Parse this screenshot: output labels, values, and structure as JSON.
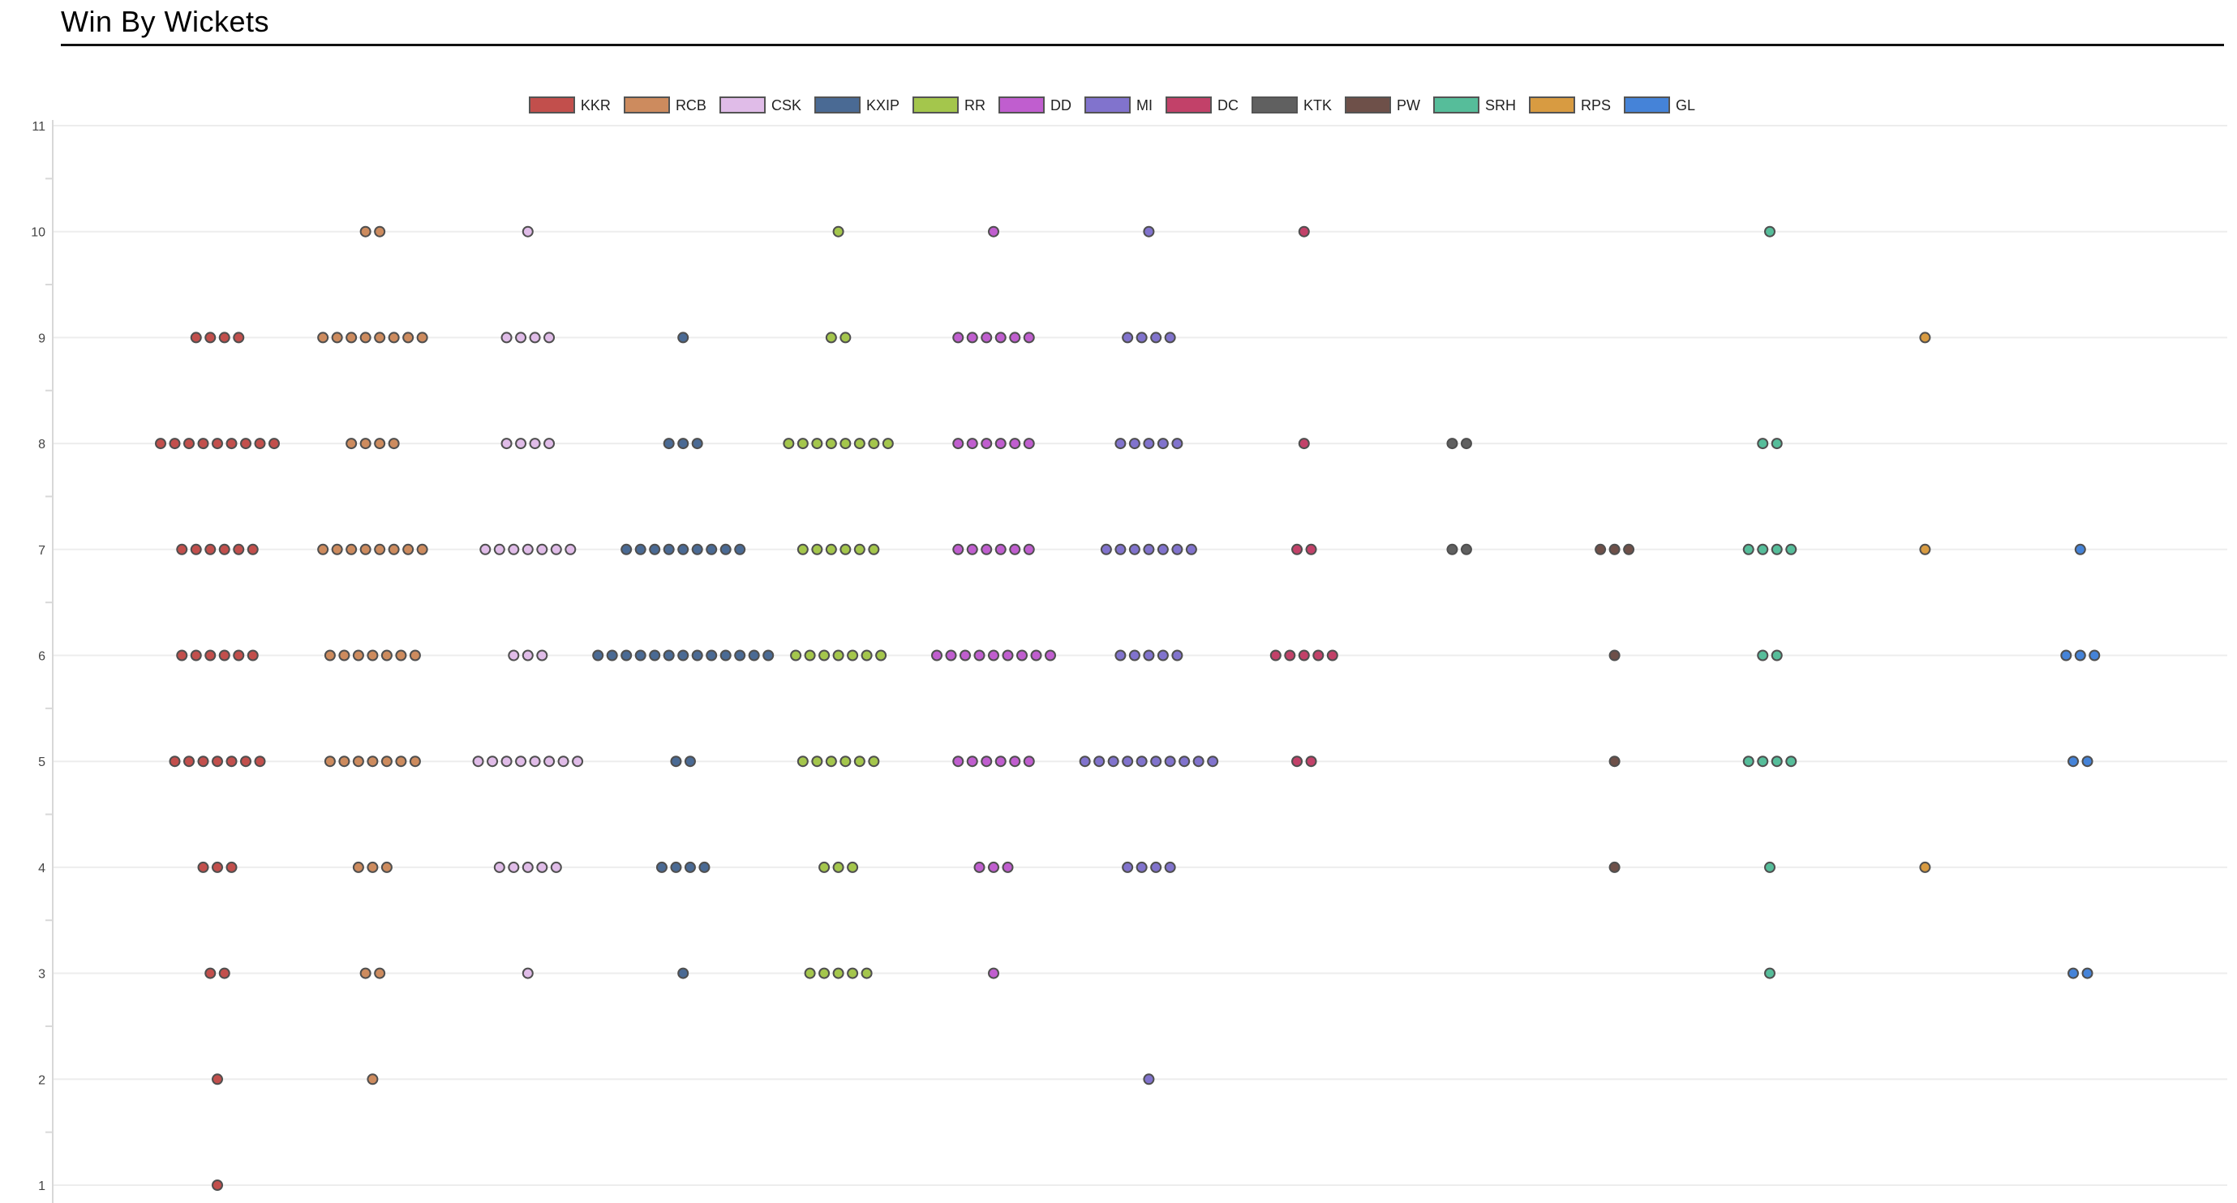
{
  "page": {
    "title": "Win By Wickets"
  },
  "chart_data": {
    "type": "scatter",
    "variant": "strip-plot-dot-counts",
    "title": "Win By Wickets",
    "xlabel": "",
    "ylabel": "",
    "ylim": [
      1,
      11
    ],
    "y_ticks": [
      11,
      10,
      9,
      8,
      7,
      6,
      5,
      4,
      3,
      2,
      1
    ],
    "grid": "horizontal",
    "legend_position": "top-center",
    "gridline_color": "#ededed",
    "axis_line_color": "#d8d8d8",
    "point_outline_color": "#4f4f4f",
    "series": [
      {
        "name": "KKR",
        "color": "#c24f4c",
        "wins_by_wickets": {
          "1": 1,
          "2": 1,
          "3": 2,
          "4": 3,
          "5": 7,
          "6": 6,
          "7": 6,
          "8": 9,
          "9": 4
        }
      },
      {
        "name": "RCB",
        "color": "#cd8b5e",
        "wins_by_wickets": {
          "2": 1,
          "3": 2,
          "4": 3,
          "5": 7,
          "6": 7,
          "7": 8,
          "8": 4,
          "9": 8,
          "10": 2
        }
      },
      {
        "name": "CSK",
        "color": "#e0bce8",
        "wins_by_wickets": {
          "3": 1,
          "4": 5,
          "5": 8,
          "6": 3,
          "7": 7,
          "8": 4,
          "9": 4,
          "10": 1
        }
      },
      {
        "name": "KXIP",
        "color": "#4a6a94",
        "wins_by_wickets": {
          "3": 1,
          "4": 4,
          "5": 2,
          "6": 13,
          "7": 9,
          "8": 3,
          "9": 1
        }
      },
      {
        "name": "RR",
        "color": "#a4c64c",
        "wins_by_wickets": {
          "3": 5,
          "4": 3,
          "5": 6,
          "6": 7,
          "7": 6,
          "8": 8,
          "9": 2,
          "10": 1
        }
      },
      {
        "name": "DD",
        "color": "#c05ecf",
        "wins_by_wickets": {
          "3": 1,
          "4": 3,
          "5": 6,
          "6": 9,
          "7": 6,
          "8": 6,
          "9": 6,
          "10": 1
        }
      },
      {
        "name": "MI",
        "color": "#8173cd",
        "wins_by_wickets": {
          "2": 1,
          "4": 4,
          "5": 10,
          "6": 5,
          "7": 7,
          "8": 5,
          "9": 4,
          "10": 1
        }
      },
      {
        "name": "DC",
        "color": "#c24169",
        "wins_by_wickets": {
          "5": 2,
          "6": 5,
          "7": 2,
          "8": 1,
          "10": 1
        }
      },
      {
        "name": "KTK",
        "color": "#606060",
        "wins_by_wickets": {
          "7": 2,
          "8": 2
        }
      },
      {
        "name": "PW",
        "color": "#6e5049",
        "wins_by_wickets": {
          "4": 1,
          "5": 1,
          "6": 1,
          "7": 3
        }
      },
      {
        "name": "SRH",
        "color": "#56bd9a",
        "wins_by_wickets": {
          "3": 1,
          "4": 1,
          "5": 4,
          "6": 2,
          "7": 4,
          "8": 2,
          "10": 1
        }
      },
      {
        "name": "RPS",
        "color": "#d89b41",
        "wins_by_wickets": {
          "4": 1,
          "7": 1,
          "9": 1
        }
      },
      {
        "name": "GL",
        "color": "#4583d8",
        "wins_by_wickets": {
          "3": 2,
          "5": 2,
          "6": 3,
          "7": 1
        }
      }
    ]
  }
}
